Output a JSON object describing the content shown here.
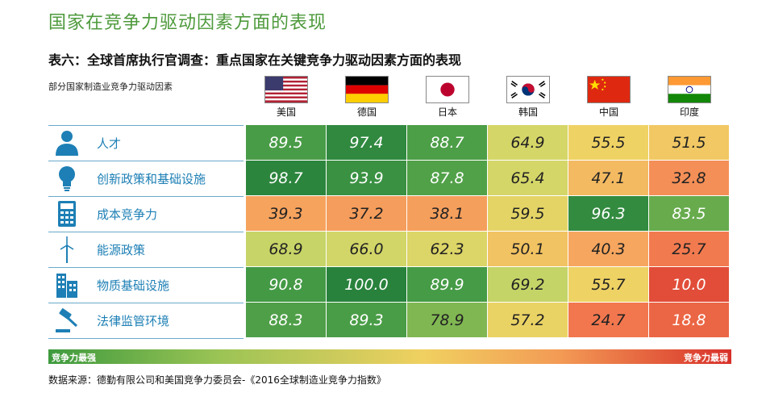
{
  "title": "国家在竞争力驱动因素方面的表现",
  "subtitle": "表六：全球首席执行官调查：重点国家在关键竞争力驱动因素方面的表现",
  "factor_header": "部分国家制造业竞争力驱动因素",
  "legend": {
    "left": "竞争力最强",
    "right": "竞争力最弱"
  },
  "source": "数据来源：德勤有限公司和美国竞争力委员会-《2016全球制造业竞争力指数》",
  "chart_data": {
    "type": "heatmap",
    "columns": [
      "美国",
      "德国",
      "日本",
      "韩国",
      "中国",
      "印度"
    ],
    "rows": [
      {
        "label": "人才",
        "icon": "person-icon",
        "values": [
          89.5,
          97.4,
          88.7,
          64.9,
          55.5,
          51.5
        ]
      },
      {
        "label": "创新政策和基础设施",
        "icon": "lightbulb-icon",
        "values": [
          98.7,
          93.9,
          87.8,
          65.4,
          47.1,
          32.8
        ]
      },
      {
        "label": "成本竞争力",
        "icon": "calculator-icon",
        "values": [
          39.3,
          37.2,
          38.1,
          59.5,
          96.3,
          83.5
        ]
      },
      {
        "label": "能源政策",
        "icon": "wind-turbine-icon",
        "values": [
          68.9,
          66.0,
          62.3,
          50.1,
          40.3,
          25.7
        ]
      },
      {
        "label": "物质基础设施",
        "icon": "building-icon",
        "values": [
          90.8,
          100.0,
          89.9,
          69.2,
          55.7,
          10.0
        ]
      },
      {
        "label": "法律监管环境",
        "icon": "gavel-icon",
        "values": [
          88.3,
          89.3,
          78.9,
          57.2,
          24.7,
          18.8
        ]
      }
    ],
    "scale": {
      "min": 0,
      "max": 100,
      "high_label": "竞争力最强",
      "low_label": "竞争力最弱"
    }
  }
}
